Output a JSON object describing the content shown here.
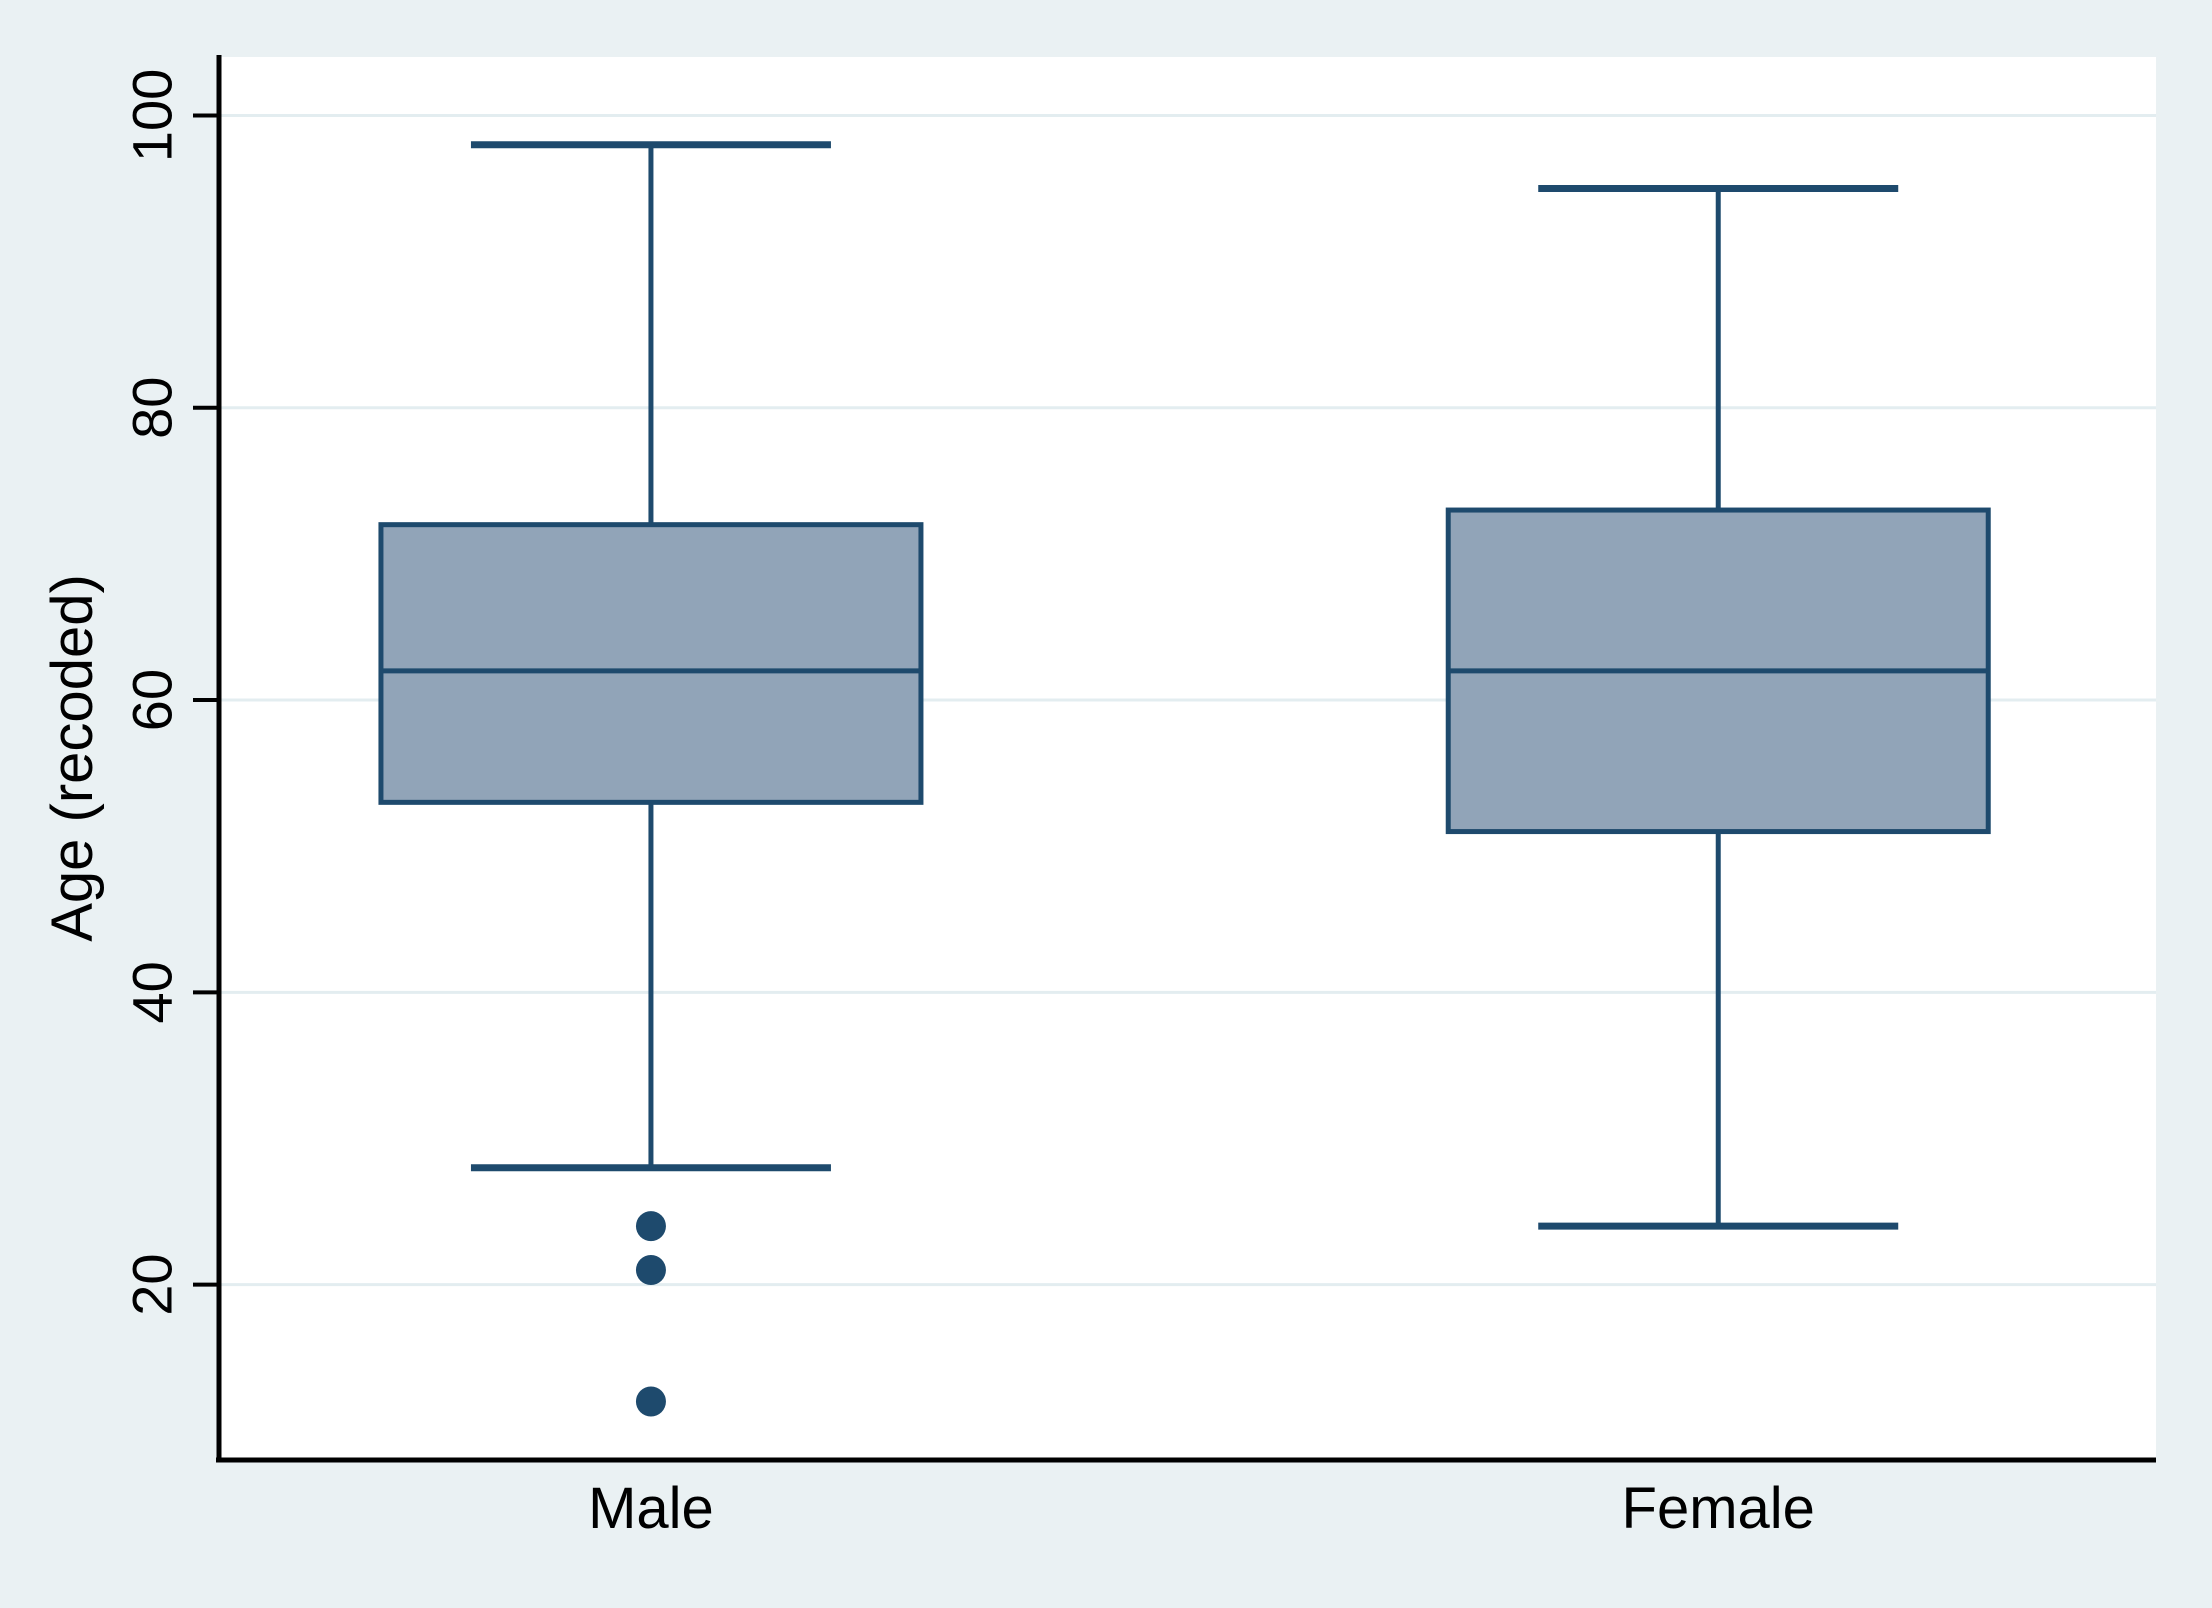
{
  "figure": {
    "background": "#eaf1f3",
    "plot_background": "#ffffff"
  },
  "chart_data": {
    "type": "boxplot",
    "title": "",
    "xlabel": "",
    "ylabel": "Age (recoded)",
    "categories": [
      "Male",
      "Female"
    ],
    "yticks": [
      20,
      40,
      60,
      80,
      100
    ],
    "ylim": [
      8,
      104
    ],
    "grid": true,
    "legend": "none",
    "series": [
      {
        "name": "Male",
        "lower_whisker": 28,
        "q1": 53,
        "median": 62,
        "q3": 72,
        "upper_whisker": 98,
        "outliers": [
          24,
          21,
          12
        ]
      },
      {
        "name": "Female",
        "lower_whisker": 24,
        "q1": 51,
        "median": 62,
        "q3": 73,
        "upper_whisker": 95,
        "outliers": []
      }
    ],
    "colors": {
      "box_fill": "#91a4b8",
      "box_stroke": "#1e4a6d",
      "grid": "#e3edf0",
      "axis": "#000000",
      "outer_background": "#eaf1f3",
      "plot_background": "#ffffff"
    }
  }
}
